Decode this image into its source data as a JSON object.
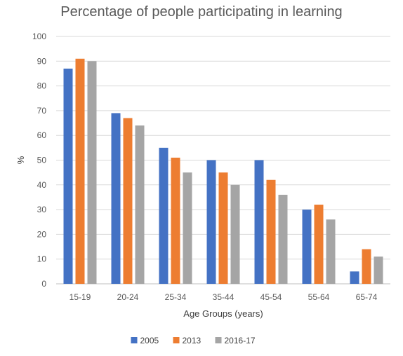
{
  "chart_data": {
    "type": "bar",
    "title": "Percentage of people participating in learning",
    "xlabel": "Age Groups (years)",
    "ylabel": "%",
    "categories": [
      "15-19",
      "20-24",
      "25-34",
      "35-44",
      "45-54",
      "55-64",
      "65-74"
    ],
    "series": [
      {
        "name": "2005",
        "color": "#4472C4",
        "values": [
          87,
          69,
          55,
          50,
          50,
          30,
          5
        ]
      },
      {
        "name": "2013",
        "color": "#ED7D31",
        "values": [
          91,
          67,
          51,
          45,
          42,
          32,
          14
        ]
      },
      {
        "name": "2016-17",
        "color": "#A5A5A5",
        "values": [
          90,
          64,
          45,
          40,
          36,
          26,
          11
        ]
      }
    ],
    "ylim": [
      0,
      100
    ],
    "yticks": [
      0,
      10,
      20,
      30,
      40,
      50,
      60,
      70,
      80,
      90,
      100
    ],
    "grid": true,
    "legend_position": "bottom"
  }
}
